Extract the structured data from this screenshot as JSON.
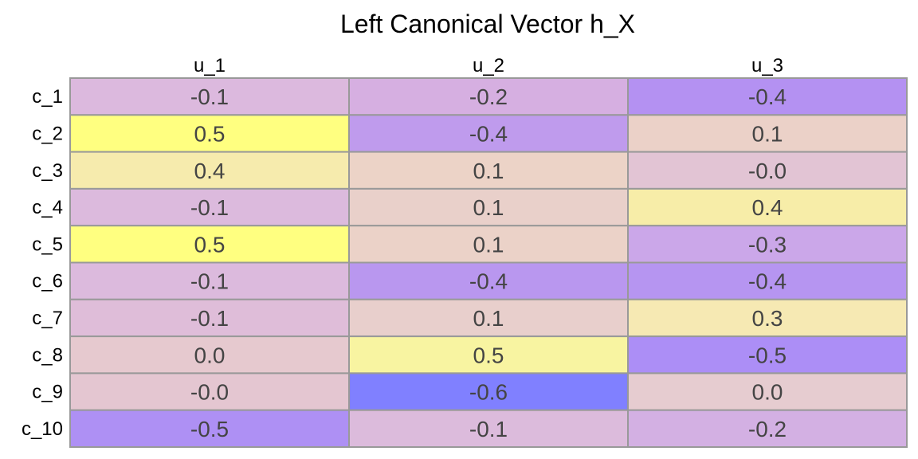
{
  "chart_data": {
    "type": "table",
    "title": "Left Canonical Vector h_X",
    "columns": [
      "u_1",
      "u_2",
      "u_3"
    ],
    "rows": [
      "c_1",
      "c_2",
      "c_3",
      "c_4",
      "c_5",
      "c_6",
      "c_7",
      "c_8",
      "c_9",
      "c_10"
    ],
    "cells": [
      [
        "-0.1",
        "-0.2",
        "-0.4"
      ],
      [
        "0.5",
        "-0.4",
        "0.1"
      ],
      [
        "0.4",
        "0.1",
        "-0.0"
      ],
      [
        "-0.1",
        "0.1",
        "0.4"
      ],
      [
        "0.5",
        "0.1",
        "-0.3"
      ],
      [
        "-0.1",
        "-0.4",
        "-0.4"
      ],
      [
        "-0.1",
        "0.1",
        "0.3"
      ],
      [
        "0.0",
        "0.5",
        "-0.5"
      ],
      [
        "-0.0",
        "-0.6",
        "0.0"
      ],
      [
        "-0.5",
        "-0.1",
        "-0.2"
      ]
    ],
    "cell_colors": [
      [
        "#dcb9de",
        "#d6afe1",
        "#b491f2"
      ],
      [
        "#ffff80",
        "#bf9bed",
        "#ebd1c8"
      ],
      [
        "#f6ebad",
        "#ecd3c7",
        "#e2c4d4"
      ],
      [
        "#dcbadd",
        "#e9d0ca",
        "#f7eda8"
      ],
      [
        "#ffff80",
        "#ebd2c8",
        "#cba7e9"
      ],
      [
        "#dcbadd",
        "#b997ef",
        "#b695f1"
      ],
      [
        "#dfbdd9",
        "#e8cfcc",
        "#f6e9b3"
      ],
      [
        "#e6c9cf",
        "#f8f4a1",
        "#ac8ef6"
      ],
      [
        "#e4c6d1",
        "#8080ff",
        "#e6ccd0"
      ],
      [
        "#ae90f4",
        "#dcbbdc",
        "#d3b0e3"
      ]
    ]
  }
}
